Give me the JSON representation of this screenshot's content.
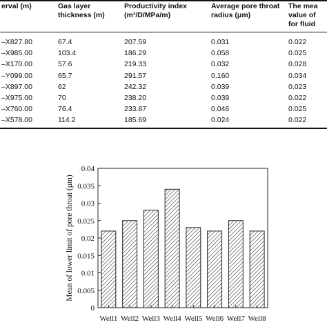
{
  "table": {
    "headers": [
      {
        "lines": [
          "erval (m)"
        ]
      },
      {
        "lines": [
          "Gas layer",
          "thickness (m)"
        ]
      },
      {
        "lines": [
          "Productivity index",
          "(m³/D/MPa/m)"
        ]
      },
      {
        "lines": [
          "Average pore throat",
          "radius (μm)"
        ]
      },
      {
        "lines": [
          "The mea",
          "value of",
          "for fluid"
        ]
      }
    ],
    "rows": [
      [
        "–X827.80",
        "67.4",
        "207.59",
        "0.031",
        "0.022"
      ],
      [
        "–X985.00",
        "103.4",
        "186.29",
        "0.058",
        "0.025"
      ],
      [
        "–X170.00",
        "57.6",
        "219.33",
        "0.032",
        "0.028"
      ],
      [
        "–Y099.00",
        "65.7",
        "291.57",
        "0.160",
        "0.034"
      ],
      [
        "–X897.00",
        "62",
        "242.32",
        "0.039",
        "0.023"
      ],
      [
        "–X975.00",
        "70",
        "238.20",
        "0.039",
        "0.022"
      ],
      [
        "–X760.00",
        "76.4",
        "233.87",
        "0.046",
        "0.025"
      ],
      [
        "–X578.00",
        "114.2",
        "185.69",
        "0.024",
        "0.022"
      ]
    ]
  },
  "chart_data": {
    "type": "bar",
    "categories": [
      "Well1",
      "Well2",
      "Well3",
      "Well4",
      "Well5",
      "Well6",
      "Well7",
      "Well8"
    ],
    "values": [
      0.022,
      0.025,
      0.028,
      0.034,
      0.023,
      0.022,
      0.025,
      0.022
    ],
    "ylabel": "Mean of lower limit of pore throat (μm)",
    "ylim": [
      0,
      0.04
    ],
    "yticks": [
      "0",
      "0.005",
      "0.01",
      "0.015",
      "0.02",
      "0.025",
      "0.03",
      "0.035",
      "0.04"
    ],
    "bar_pattern": "diagonal-hatch",
    "grid": false
  }
}
